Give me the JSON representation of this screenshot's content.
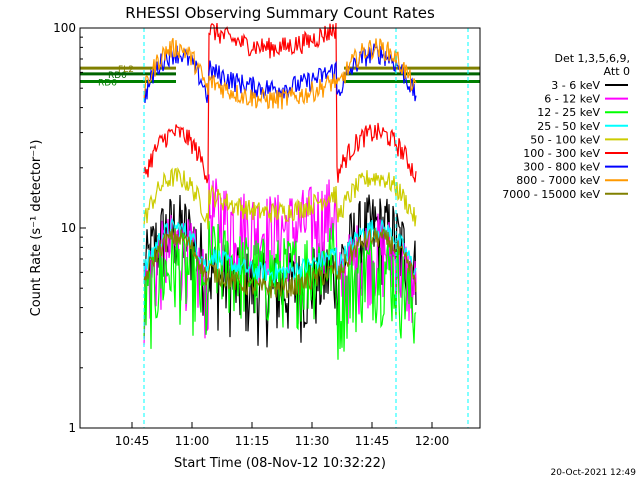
{
  "chart_data": {
    "type": "line",
    "title": "RHESSI Observing Summary Count Rates",
    "xlabel": "Start Time (08-Nov-12 10:32:22)",
    "ylabel": "Count Rate (s⁻¹ detector⁻¹)",
    "y_scale": "log",
    "ylim": [
      1,
      100
    ],
    "y_ticks": [
      "1",
      "10",
      "100"
    ],
    "x_range": [
      "10:32",
      "12:12"
    ],
    "x_ticks": [
      "10:45",
      "11:00",
      "11:15",
      "11:30",
      "11:45",
      "12:00"
    ],
    "legend_placement": "right",
    "legend_header": [
      "Det 1,3,5,6,9,",
      "Att 0"
    ],
    "series": [
      {
        "name": "3 - 6 keV",
        "color": "#000000"
      },
      {
        "name": "6 - 12 keV",
        "color": "#ff00ff"
      },
      {
        "name": "12 - 25 keV",
        "color": "#00ff00"
      },
      {
        "name": "25 - 50 keV",
        "color": "#00ffff"
      },
      {
        "name": "50 - 100 keV",
        "color": "#cccc00"
      },
      {
        "name": "100 - 300 keV",
        "color": "#ff0000"
      },
      {
        "name": "300 - 800 keV",
        "color": "#0000ff"
      },
      {
        "name": "800 - 7000 keV",
        "color": "#ff9900"
      },
      {
        "name": "7000 - 15000 keV",
        "color": "#808000"
      }
    ],
    "orbit_flags": [
      {
        "label": "RD6",
        "color": "#008000",
        "level": 54
      },
      {
        "label": "RD0",
        "color": "#006400",
        "level": 59
      },
      {
        "label": "FL2",
        "color": "#808000",
        "level": 63
      }
    ],
    "markers": [
      {
        "time": "10:48",
        "color": "#00ffff"
      },
      {
        "time": "11:51",
        "color": "#00ffff"
      },
      {
        "time": "12:09",
        "color": "#00ffff"
      }
    ]
  },
  "timestamp": "20-Oct-2021 12:49"
}
